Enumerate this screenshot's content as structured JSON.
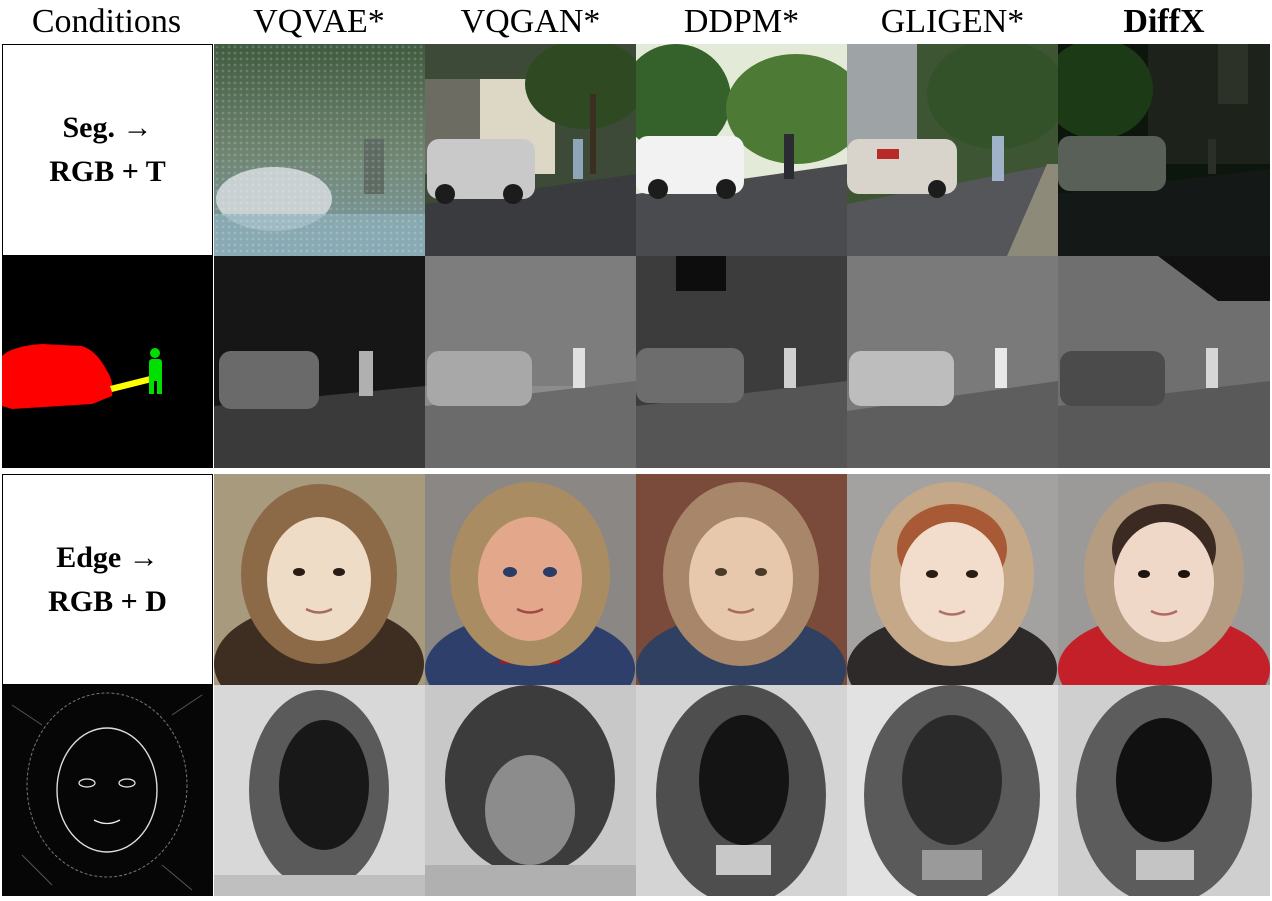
{
  "columns": [
    "Conditions",
    "VQVAE*",
    "VQGAN*",
    "DDPM*",
    "GLIGEN*",
    "DiffX"
  ],
  "rows": [
    {
      "task_line1": "Seg. →",
      "task_line2": "RGB + T"
    },
    {
      "task_line1": "Edge →",
      "task_line2": "RGB + D"
    }
  ]
}
